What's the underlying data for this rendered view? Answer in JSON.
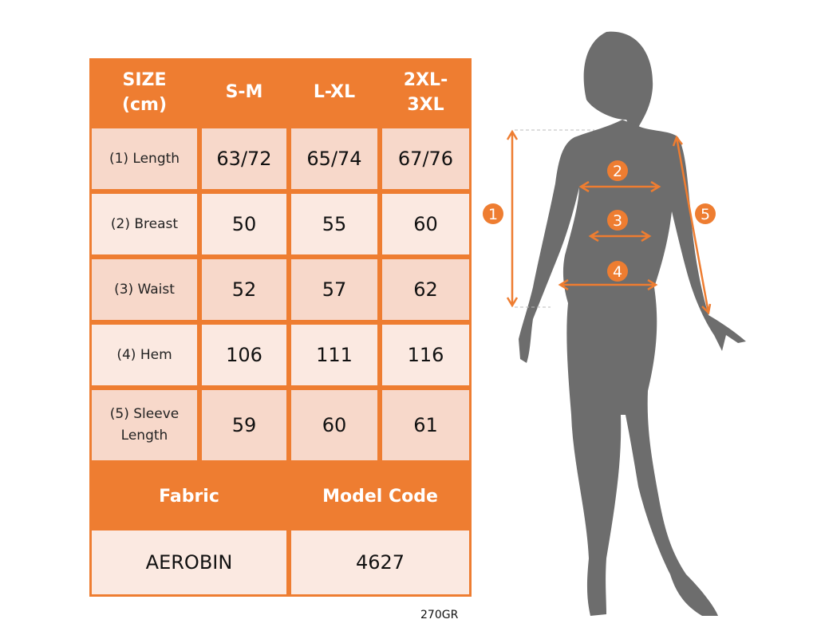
{
  "table": {
    "header": [
      "SIZE\n(cm)",
      "S-M",
      "L-XL",
      "2XL-\n3XL"
    ],
    "rows": [
      {
        "label": "(1) Length",
        "values": [
          "63/72",
          "65/74",
          "67/76"
        ]
      },
      {
        "label": "(2) Breast",
        "values": [
          "50",
          "55",
          "60"
        ]
      },
      {
        "label": "(3) Waist",
        "values": [
          "52",
          "57",
          "62"
        ]
      },
      {
        "label": "(4) Hem",
        "values": [
          "106",
          "111",
          "116"
        ]
      },
      {
        "label": "(5) Sleeve\nLength",
        "values": [
          "59",
          "60",
          "61"
        ]
      }
    ],
    "info_header": [
      "Fabric",
      "Model Code"
    ],
    "info_values": [
      "AEROBIN",
      "4627"
    ]
  },
  "footnote": "270GR",
  "figure": {
    "markers": [
      "1",
      "2",
      "3",
      "4",
      "5"
    ]
  },
  "colors": {
    "accent": "#ee7d31",
    "cell_light": "#fbe9e1",
    "cell_pink": "#f7d8ca",
    "silhouette": "#6d6d6d"
  }
}
